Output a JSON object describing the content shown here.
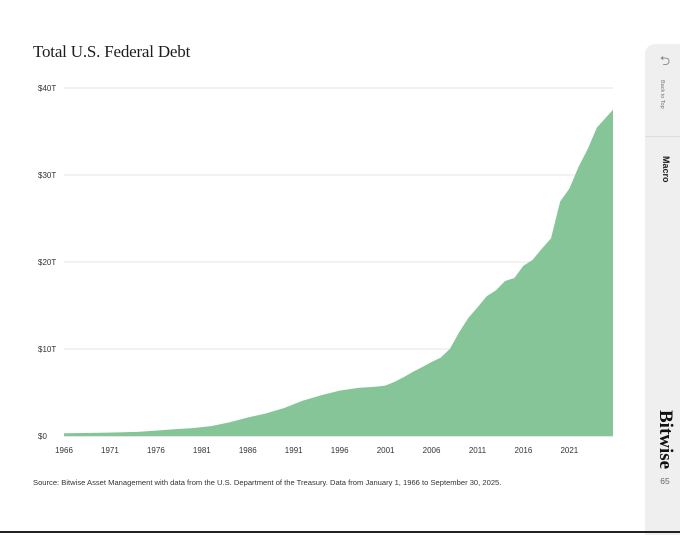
{
  "chart_data": {
    "type": "area",
    "title": "Total U.S. Federal Debt",
    "xlabel": "",
    "ylabel": "",
    "xlim": [
      1966,
      2025.75
    ],
    "ylim": [
      0,
      40
    ],
    "y_ticks": [
      0,
      10,
      20,
      30,
      40
    ],
    "y_tick_labels": [
      "$0",
      "$10T",
      "$20T",
      "$30T",
      "$40T"
    ],
    "x_ticks": [
      1966,
      1971,
      1976,
      1981,
      1986,
      1991,
      1996,
      2001,
      2006,
      2011,
      2016,
      2021
    ],
    "x_tick_labels": [
      "1966",
      "1971",
      "1976",
      "1981",
      "1986",
      "1991",
      "1996",
      "2001",
      "2006",
      "2011",
      "2016",
      "2021"
    ],
    "grid": true,
    "color": "#86c597",
    "series": [
      {
        "x": [
          1966,
          1968,
          1970,
          1972,
          1974,
          1976,
          1978,
          1980,
          1982,
          1984,
          1986,
          1988,
          1990,
          1992,
          1994,
          1996,
          1998,
          2000,
          2001,
          2002,
          2003,
          2004,
          2005,
          2006,
          2007,
          2008,
          2009,
          2010,
          2011,
          2012,
          2013,
          2014,
          2015,
          2016,
          2017,
          2018,
          2019,
          2020,
          2021,
          2022,
          2023,
          2024,
          2025.75
        ],
        "values": [
          0.32,
          0.35,
          0.38,
          0.42,
          0.48,
          0.62,
          0.77,
          0.91,
          1.14,
          1.57,
          2.12,
          2.6,
          3.23,
          4.06,
          4.69,
          5.22,
          5.53,
          5.67,
          5.8,
          6.23,
          6.78,
          7.38,
          7.93,
          8.51,
          9.01,
          10.02,
          11.91,
          13.56,
          14.79,
          16.07,
          16.74,
          17.82,
          18.15,
          19.57,
          20.25,
          21.52,
          22.72,
          26.95,
          28.43,
          30.93,
          32.99,
          35.46,
          37.5
        ]
      }
    ]
  },
  "source_note": "Source: Bitwise Asset Management with data from the U.S. Department of the Treasury. Data from January 1, 1966 to September 30, 2025.",
  "sidebar": {
    "back_to_top": "Back to Top",
    "section_tab": "Macro",
    "brand": "Bitwise",
    "page_number": "65"
  },
  "icons": {
    "back": "return-arrow-icon"
  }
}
